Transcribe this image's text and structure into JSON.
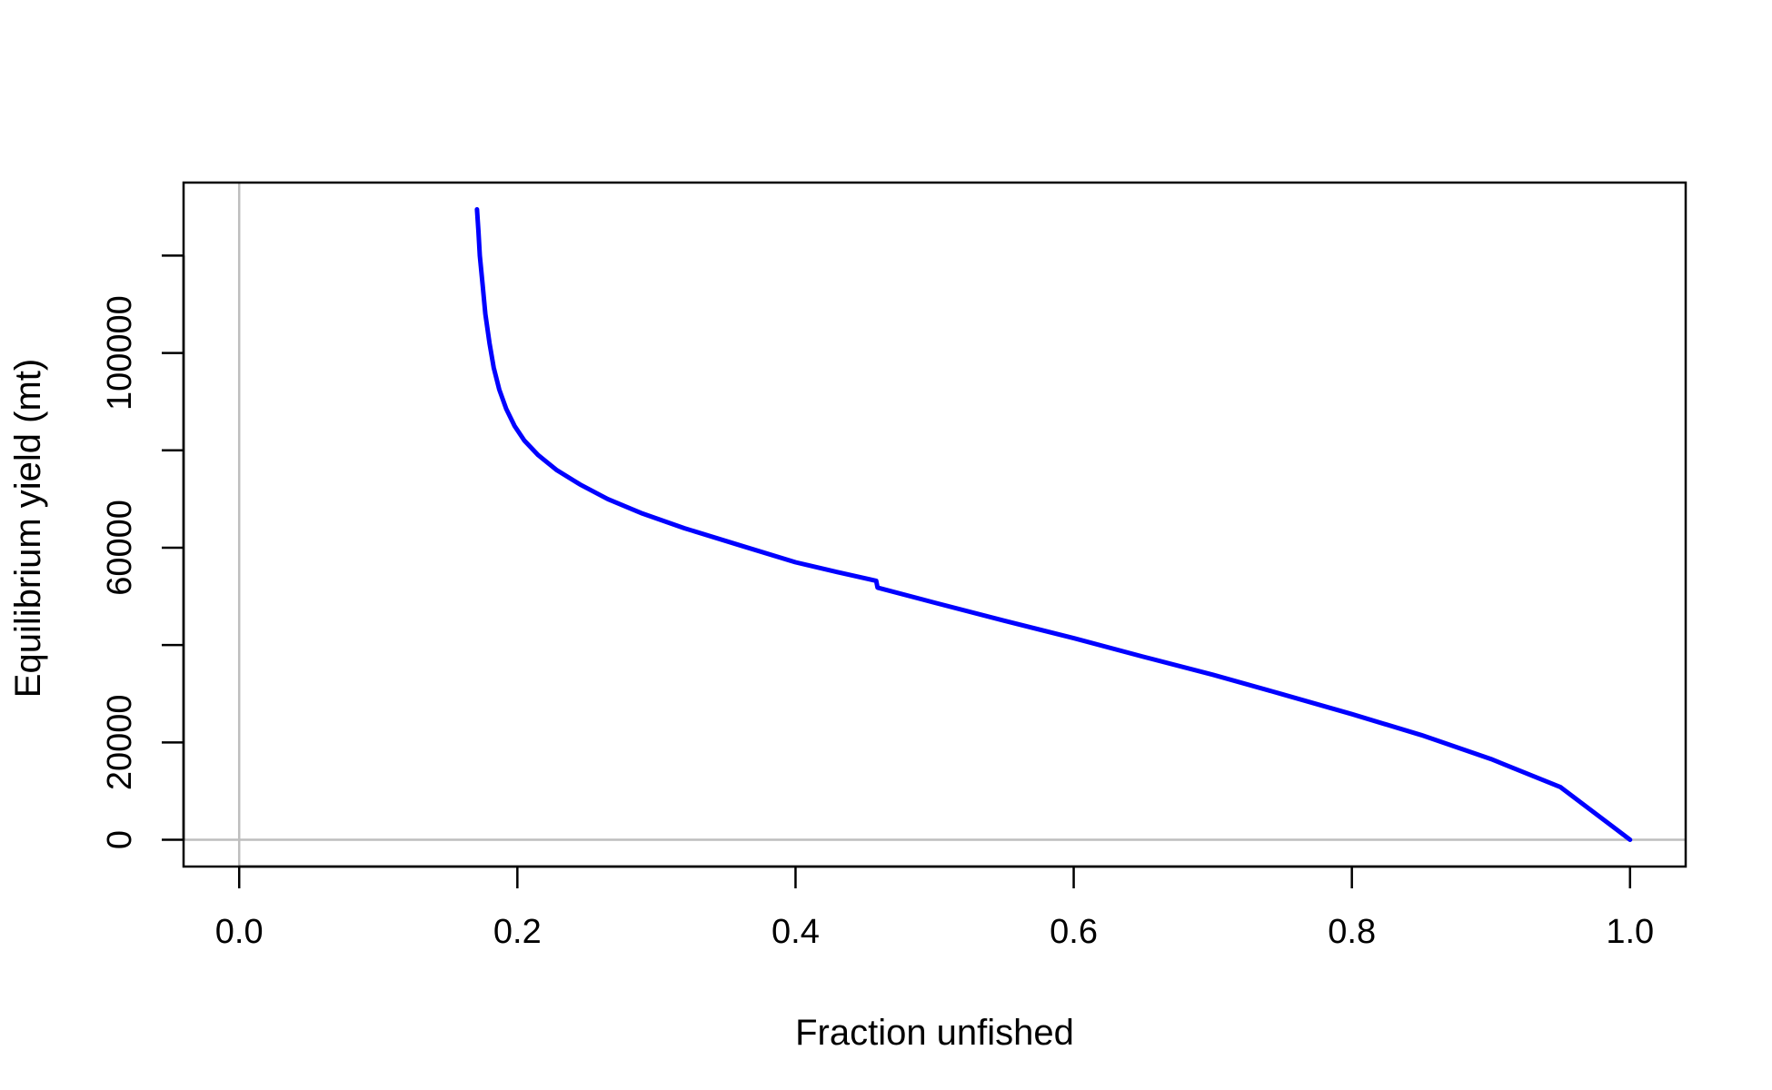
{
  "chart_data": {
    "type": "line",
    "title": "",
    "xlabel": "Fraction unfished",
    "ylabel": "Equilibrium yield (mt)",
    "xlim": [
      -0.04,
      1.04
    ],
    "ylim": [
      -5500,
      135000
    ],
    "x_ticks": [
      0.0,
      0.2,
      0.4,
      0.6,
      0.8,
      1.0
    ],
    "x_tick_labels": [
      "0.0",
      "0.2",
      "0.4",
      "0.6",
      "0.8",
      "1.0"
    ],
    "y_ticks": [
      0,
      20000,
      40000,
      60000,
      80000,
      100000,
      120000
    ],
    "y_tick_labels": [
      "0",
      "20000",
      "",
      "60000",
      "",
      "100000",
      ""
    ],
    "reference_lines": {
      "x": 0,
      "y": 0,
      "color": "#bebebe"
    },
    "grid": false,
    "legend": "none",
    "series": [
      {
        "color": "#0000ff",
        "points": [
          [
            0.171,
            129500
          ],
          [
            0.172,
            125000
          ],
          [
            0.173,
            120000
          ],
          [
            0.175,
            114000
          ],
          [
            0.177,
            108000
          ],
          [
            0.18,
            102000
          ],
          [
            0.183,
            97000
          ],
          [
            0.187,
            92500
          ],
          [
            0.192,
            88500
          ],
          [
            0.198,
            85000
          ],
          [
            0.205,
            82000
          ],
          [
            0.215,
            79000
          ],
          [
            0.228,
            76000
          ],
          [
            0.245,
            73000
          ],
          [
            0.265,
            70000
          ],
          [
            0.29,
            67000
          ],
          [
            0.32,
            64000
          ],
          [
            0.36,
            60500
          ],
          [
            0.4,
            57000
          ],
          [
            0.43,
            55000
          ],
          [
            0.458,
            53200
          ],
          [
            0.459,
            51800
          ],
          [
            0.5,
            48700
          ],
          [
            0.55,
            45000
          ],
          [
            0.6,
            41400
          ],
          [
            0.65,
            37600
          ],
          [
            0.7,
            33900
          ],
          [
            0.75,
            29900
          ],
          [
            0.8,
            25800
          ],
          [
            0.85,
            21500
          ],
          [
            0.9,
            16600
          ],
          [
            0.95,
            10800
          ],
          [
            1.0,
            0
          ]
        ]
      }
    ]
  }
}
